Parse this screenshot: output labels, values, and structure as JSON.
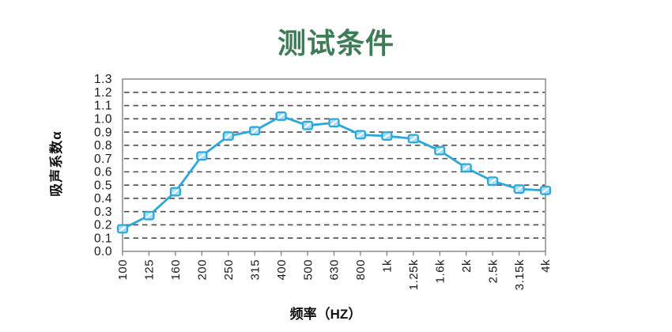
{
  "title": "测试条件",
  "title_color": "#3e7c55",
  "chart_data": {
    "type": "line",
    "title": "测试条件",
    "categories": [
      "100",
      "125",
      "160",
      "200",
      "250",
      "315",
      "400",
      "500",
      "630",
      "800",
      "1k",
      "1.25k",
      "1.6k",
      "2k",
      "2.5k",
      "3.15k",
      "4k"
    ],
    "values": [
      0.17,
      0.27,
      0.45,
      0.72,
      0.87,
      0.91,
      1.02,
      0.95,
      0.97,
      0.88,
      0.87,
      0.85,
      0.76,
      0.63,
      0.53,
      0.47,
      0.46
    ],
    "xlabel": "频率（HZ）",
    "ylabel": "吸声系数α",
    "ylim": [
      0,
      1.3
    ],
    "y_tick_step": 0.1,
    "y_tick_labels": [
      "0.0",
      "0.1",
      "0.2",
      "0.3",
      "0.4",
      "0.5",
      "0.6",
      "0.7",
      "0.8",
      "0.9",
      "1.0",
      "1.1",
      "1.2",
      "1.3"
    ],
    "grid": "horizontal-dashed",
    "legend_position": "none",
    "line_color": "#29a8e0",
    "marker_style": "square-with-white-slash",
    "marker_fill": "#aadef6",
    "marker_stroke": "#29a8e0",
    "grid_color": "#4d4d4d",
    "border_color": "#8a8a8a",
    "tick_color": "#7f7f7f",
    "text_color": "#1a1a1a"
  }
}
